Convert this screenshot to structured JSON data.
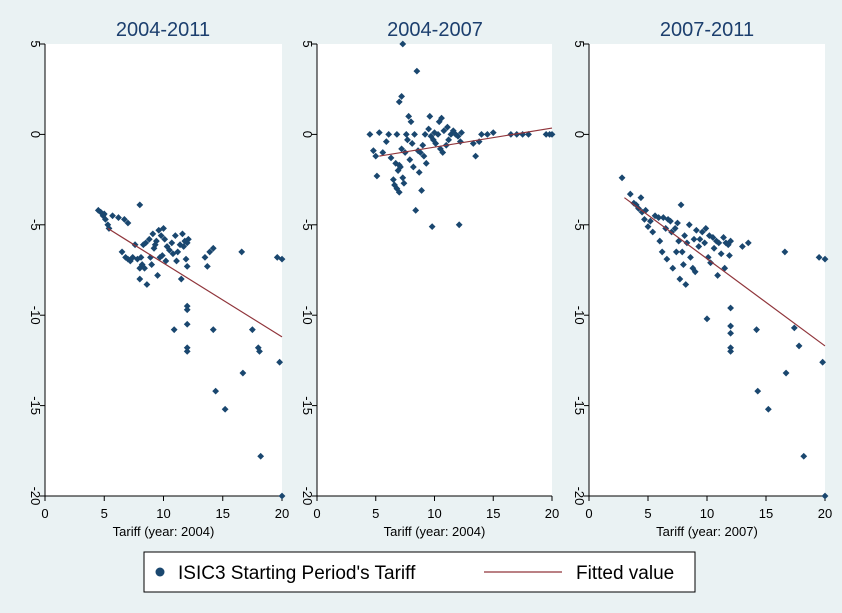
{
  "colors": {
    "background": "#eaf2f3",
    "plot_area": "#ffffff",
    "marker": "#1a476f",
    "fit_line": "#90353b",
    "title": "#1c3f6e"
  },
  "legend": {
    "scatter_label": "ISIC3 Starting Period's Tariff",
    "fit_label": "Fitted value"
  },
  "chart_data": [
    {
      "type": "scatter",
      "title": "2004-2011",
      "xlabel": "Tariff (year: 2004)",
      "ylabel": "",
      "xlim": [
        0,
        20
      ],
      "ylim": [
        -20,
        5
      ],
      "xticks": [
        0,
        5,
        10,
        15,
        20
      ],
      "yticks": [
        5,
        0,
        -5,
        -10,
        -15,
        -20
      ],
      "grid": false,
      "legend_position": "bottom",
      "series": [
        {
          "name": "ISIC3 Starting Period's Tariff",
          "points": [
            [
              4.5,
              -4.2
            ],
            [
              4.7,
              -4.3
            ],
            [
              4.9,
              -4.5
            ],
            [
              5.0,
              -4.4
            ],
            [
              5.1,
              -4.7
            ],
            [
              5.3,
              -5.0
            ],
            [
              5.4,
              -5.2
            ],
            [
              5.7,
              -4.5
            ],
            [
              6.2,
              -4.6
            ],
            [
              6.5,
              -6.5
            ],
            [
              6.7,
              -4.7
            ],
            [
              6.8,
              -6.8
            ],
            [
              7.0,
              -4.9
            ],
            [
              7.0,
              -6.9
            ],
            [
              7.2,
              -7.0
            ],
            [
              7.4,
              -6.8
            ],
            [
              7.6,
              -6.1
            ],
            [
              7.8,
              -6.9
            ],
            [
              8.0,
              -3.9
            ],
            [
              8.0,
              -7.4
            ],
            [
              8.0,
              -8.0
            ],
            [
              8.1,
              -6.8
            ],
            [
              8.2,
              -7.2
            ],
            [
              8.3,
              -6.1
            ],
            [
              8.4,
              -7.4
            ],
            [
              8.5,
              -6.0
            ],
            [
              8.6,
              -8.3
            ],
            [
              8.8,
              -5.8
            ],
            [
              8.9,
              -6.8
            ],
            [
              9.0,
              -7.2
            ],
            [
              9.1,
              -5.5
            ],
            [
              9.2,
              -6.3
            ],
            [
              9.3,
              -6.1
            ],
            [
              9.4,
              -5.9
            ],
            [
              9.5,
              -7.8
            ],
            [
              9.6,
              -5.3
            ],
            [
              9.7,
              -6.8
            ],
            [
              9.8,
              -5.6
            ],
            [
              9.9,
              -6.7
            ],
            [
              10.0,
              -5.2
            ],
            [
              10.1,
              -5.8
            ],
            [
              10.2,
              -7.0
            ],
            [
              10.3,
              -6.2
            ],
            [
              10.5,
              -6.4
            ],
            [
              10.7,
              -6.0
            ],
            [
              10.8,
              -6.6
            ],
            [
              10.9,
              -10.8
            ],
            [
              11.0,
              -5.6
            ],
            [
              11.1,
              -7.0
            ],
            [
              11.2,
              -6.5
            ],
            [
              11.4,
              -6.1
            ],
            [
              11.5,
              -8.0
            ],
            [
              11.6,
              -5.5
            ],
            [
              11.7,
              -6.2
            ],
            [
              11.8,
              -5.9
            ],
            [
              11.9,
              -6.9
            ],
            [
              12.0,
              -6.0
            ],
            [
              12.0,
              -7.3
            ],
            [
              12.0,
              -9.5
            ],
            [
              12.0,
              -9.7
            ],
            [
              12.0,
              -10.5
            ],
            [
              12.0,
              -11.8
            ],
            [
              12.0,
              -12.0
            ],
            [
              12.1,
              -5.8
            ],
            [
              13.5,
              -6.8
            ],
            [
              13.7,
              -7.3
            ],
            [
              13.9,
              -6.5
            ],
            [
              14.2,
              -6.3
            ],
            [
              14.2,
              -10.8
            ],
            [
              14.4,
              -14.2
            ],
            [
              15.2,
              -15.2
            ],
            [
              16.6,
              -6.5
            ],
            [
              16.7,
              -13.2
            ],
            [
              17.5,
              -10.8
            ],
            [
              18.0,
              -11.8
            ],
            [
              18.1,
              -12.0
            ],
            [
              18.2,
              -17.8
            ],
            [
              19.6,
              -6.8
            ],
            [
              19.8,
              -12.6
            ],
            [
              20.0,
              -6.9
            ],
            [
              20.0,
              -20.0
            ]
          ]
        },
        {
          "name": "Fitted value",
          "line": [
            [
              5.3,
              -5.2
            ],
            [
              20.0,
              -11.2
            ]
          ]
        }
      ]
    },
    {
      "type": "scatter",
      "title": "2004-2007",
      "xlabel": "Tariff (year: 2004)",
      "ylabel": "",
      "xlim": [
        0,
        20
      ],
      "ylim": [
        -20,
        5
      ],
      "xticks": [
        0,
        5,
        10,
        15,
        20
      ],
      "yticks": [
        5,
        0,
        -5,
        -10,
        -15,
        -20
      ],
      "grid": false,
      "legend_position": "bottom",
      "series": [
        {
          "name": "ISIC3 Starting Period's Tariff",
          "points": [
            [
              4.5,
              0.0
            ],
            [
              4.8,
              -0.9
            ],
            [
              5.0,
              -1.2
            ],
            [
              5.1,
              -2.3
            ],
            [
              5.3,
              0.1
            ],
            [
              5.6,
              -1.0
            ],
            [
              5.9,
              -0.4
            ],
            [
              6.1,
              0.0
            ],
            [
              6.3,
              -1.3
            ],
            [
              6.5,
              -2.5
            ],
            [
              6.6,
              -2.8
            ],
            [
              6.7,
              -1.6
            ],
            [
              6.8,
              -3.0
            ],
            [
              6.8,
              0.0
            ],
            [
              6.9,
              -2.0
            ],
            [
              7.0,
              -1.7
            ],
            [
              7.0,
              1.8
            ],
            [
              7.0,
              -3.2
            ],
            [
              7.1,
              -1.8
            ],
            [
              7.2,
              -0.8
            ],
            [
              7.2,
              2.1
            ],
            [
              7.3,
              5.0
            ],
            [
              7.3,
              -2.4
            ],
            [
              7.4,
              -2.7
            ],
            [
              7.5,
              -1.0
            ],
            [
              7.6,
              0.0
            ],
            [
              7.7,
              -0.3
            ],
            [
              7.8,
              1.0
            ],
            [
              7.9,
              -1.4
            ],
            [
              8.0,
              0.7
            ],
            [
              8.1,
              -0.5
            ],
            [
              8.2,
              -1.8
            ],
            [
              8.3,
              0.0
            ],
            [
              8.4,
              -4.2
            ],
            [
              8.5,
              3.5
            ],
            [
              8.6,
              -0.9
            ],
            [
              8.7,
              -2.1
            ],
            [
              8.8,
              -1.0
            ],
            [
              8.9,
              -3.1
            ],
            [
              9.0,
              -0.6
            ],
            [
              9.1,
              -1.2
            ],
            [
              9.2,
              0.0
            ],
            [
              9.3,
              -1.6
            ],
            [
              9.5,
              0.3
            ],
            [
              9.6,
              1.0
            ],
            [
              9.7,
              -0.1
            ],
            [
              9.8,
              -5.1
            ],
            [
              9.9,
              -0.3
            ],
            [
              10.0,
              0.1
            ],
            [
              10.1,
              -0.5
            ],
            [
              10.3,
              0.0
            ],
            [
              10.4,
              0.7
            ],
            [
              10.5,
              -0.8
            ],
            [
              10.6,
              0.9
            ],
            [
              10.7,
              -1.0
            ],
            [
              10.8,
              0.2
            ],
            [
              11.0,
              -0.6
            ],
            [
              11.1,
              0.4
            ],
            [
              11.2,
              -0.3
            ],
            [
              11.4,
              0.0
            ],
            [
              11.6,
              0.2
            ],
            [
              11.8,
              0.0
            ],
            [
              12.0,
              -0.1
            ],
            [
              12.1,
              -5.0
            ],
            [
              12.2,
              -0.4
            ],
            [
              12.3,
              0.1
            ],
            [
              13.3,
              -0.5
            ],
            [
              13.5,
              -1.2
            ],
            [
              13.8,
              -0.4
            ],
            [
              14.0,
              0.0
            ],
            [
              14.5,
              0.0
            ],
            [
              15.0,
              0.1
            ],
            [
              16.5,
              0.0
            ],
            [
              17.0,
              0.0
            ],
            [
              17.5,
              0.0
            ],
            [
              18.0,
              0.0
            ],
            [
              19.5,
              0.0
            ],
            [
              19.8,
              0.0
            ],
            [
              20.0,
              0.0
            ]
          ]
        },
        {
          "name": "Fitted value",
          "line": [
            [
              5.3,
              -1.2
            ],
            [
              20.0,
              0.35
            ]
          ]
        }
      ]
    },
    {
      "type": "scatter",
      "title": "2007-2011",
      "xlabel": "Tariff (year: 2007)",
      "ylabel": "",
      "xlim": [
        0,
        20
      ],
      "ylim": [
        -20,
        5
      ],
      "xticks": [
        0,
        5,
        10,
        15,
        20
      ],
      "yticks": [
        5,
        0,
        -5,
        -10,
        -15,
        -20
      ],
      "grid": false,
      "legend_position": "bottom",
      "series": [
        {
          "name": "ISIC3 Starting Period's Tariff",
          "points": [
            [
              2.8,
              -2.4
            ],
            [
              3.5,
              -3.3
            ],
            [
              3.8,
              -3.8
            ],
            [
              4.0,
              -3.9
            ],
            [
              4.2,
              -4.1
            ],
            [
              4.4,
              -3.5
            ],
            [
              4.5,
              -4.3
            ],
            [
              4.7,
              -4.7
            ],
            [
              4.8,
              -4.2
            ],
            [
              5.0,
              -5.1
            ],
            [
              5.2,
              -4.8
            ],
            [
              5.4,
              -5.4
            ],
            [
              5.6,
              -4.5
            ],
            [
              5.9,
              -4.6
            ],
            [
              6.0,
              -5.9
            ],
            [
              6.2,
              -6.5
            ],
            [
              6.3,
              -4.6
            ],
            [
              6.5,
              -5.2
            ],
            [
              6.6,
              -6.9
            ],
            [
              6.7,
              -4.7
            ],
            [
              6.9,
              -4.8
            ],
            [
              7.0,
              -5.4
            ],
            [
              7.1,
              -7.4
            ],
            [
              7.3,
              -5.2
            ],
            [
              7.4,
              -6.5
            ],
            [
              7.5,
              -4.9
            ],
            [
              7.6,
              -5.9
            ],
            [
              7.7,
              -8.0
            ],
            [
              7.8,
              -3.9
            ],
            [
              7.9,
              -6.5
            ],
            [
              8.0,
              -7.2
            ],
            [
              8.1,
              -5.6
            ],
            [
              8.2,
              -8.3
            ],
            [
              8.3,
              -6.0
            ],
            [
              8.5,
              -5.0
            ],
            [
              8.6,
              -6.8
            ],
            [
              8.8,
              -7.4
            ],
            [
              8.9,
              -5.8
            ],
            [
              9.0,
              -7.6
            ],
            [
              9.1,
              -5.3
            ],
            [
              9.3,
              -6.2
            ],
            [
              9.4,
              -5.8
            ],
            [
              9.6,
              -5.4
            ],
            [
              9.8,
              -6.0
            ],
            [
              9.9,
              -5.2
            ],
            [
              10.0,
              -10.2
            ],
            [
              10.1,
              -6.8
            ],
            [
              10.2,
              -5.6
            ],
            [
              10.3,
              -7.1
            ],
            [
              10.5,
              -5.7
            ],
            [
              10.6,
              -6.3
            ],
            [
              10.8,
              -5.9
            ],
            [
              10.9,
              -7.8
            ],
            [
              11.0,
              -6.0
            ],
            [
              11.2,
              -6.6
            ],
            [
              11.4,
              -5.7
            ],
            [
              11.5,
              -7.4
            ],
            [
              11.6,
              -6.0
            ],
            [
              11.8,
              -6.1
            ],
            [
              11.9,
              -6.7
            ],
            [
              12.0,
              -5.9
            ],
            [
              12.0,
              -9.6
            ],
            [
              12.0,
              -10.6
            ],
            [
              12.0,
              -11.0
            ],
            [
              12.0,
              -11.8
            ],
            [
              12.0,
              -12.0
            ],
            [
              13.0,
              -6.2
            ],
            [
              13.5,
              -6.0
            ],
            [
              14.2,
              -10.8
            ],
            [
              14.3,
              -14.2
            ],
            [
              15.2,
              -15.2
            ],
            [
              16.6,
              -6.5
            ],
            [
              16.7,
              -13.2
            ],
            [
              17.4,
              -10.7
            ],
            [
              17.8,
              -11.7
            ],
            [
              18.2,
              -17.8
            ],
            [
              19.5,
              -6.8
            ],
            [
              19.8,
              -12.6
            ],
            [
              20.0,
              -6.9
            ],
            [
              20.0,
              -20.0
            ]
          ]
        },
        {
          "name": "Fitted value",
          "line": [
            [
              3.0,
              -3.5
            ],
            [
              20.0,
              -11.7
            ]
          ]
        }
      ]
    }
  ]
}
